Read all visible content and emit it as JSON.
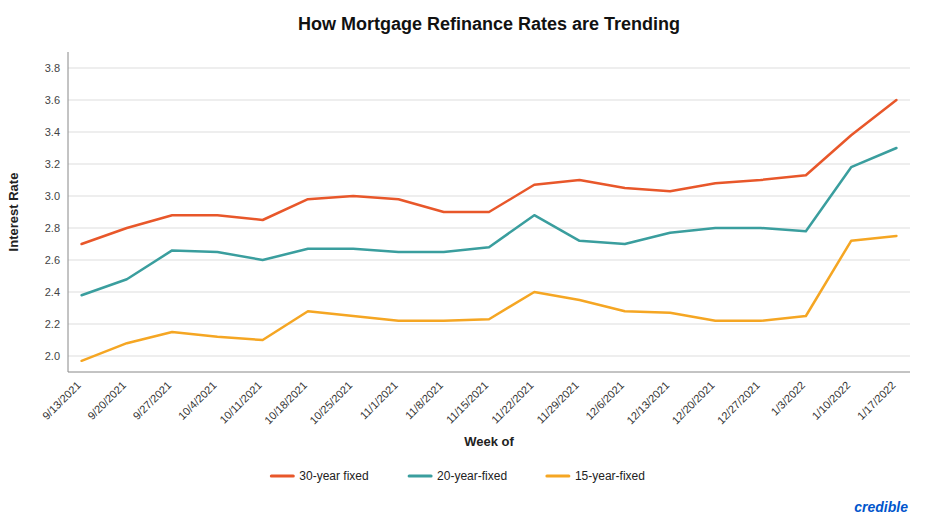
{
  "chart_data": {
    "type": "line",
    "title": "How Mortgage Refinance Rates are Trending",
    "x_label": "Week of",
    "y_label": "Interest Rate",
    "categories": [
      "9/13/2021",
      "9/20/2021",
      "9/27/2021",
      "10/4/2021",
      "10/11/2021",
      "10/18/2021",
      "10/25/2021",
      "11/1/2021",
      "11/8/2021",
      "11/15/2021",
      "11/22/2021",
      "11/29/2021",
      "12/6/2021",
      "12/13/2021",
      "12/20/2021",
      "12/27/2021",
      "1/3/2022",
      "1/10/2022",
      "1/17/2022"
    ],
    "series": [
      {
        "name": "30-year fixed",
        "color": "#E8572A",
        "values": [
          2.7,
          2.8,
          2.88,
          2.88,
          2.85,
          2.98,
          3.0,
          2.98,
          2.9,
          2.9,
          3.07,
          3.1,
          3.05,
          3.03,
          3.08,
          3.1,
          3.13,
          3.38,
          3.6
        ]
      },
      {
        "name": "20-year-fixed",
        "color": "#3A9E9E",
        "values": [
          2.38,
          2.48,
          2.66,
          2.65,
          2.6,
          2.67,
          2.67,
          2.65,
          2.65,
          2.68,
          2.88,
          2.72,
          2.7,
          2.77,
          2.8,
          2.8,
          2.78,
          3.18,
          3.3
        ]
      },
      {
        "name": "15-year-fixed",
        "color": "#F5A623",
        "values": [
          1.97,
          2.08,
          2.15,
          2.12,
          2.1,
          2.28,
          2.25,
          2.22,
          2.22,
          2.23,
          2.4,
          2.35,
          2.28,
          2.27,
          2.22,
          2.22,
          2.25,
          2.72,
          2.75
        ]
      }
    ],
    "ylim": [
      1.9,
      3.9
    ],
    "yticks": [
      {
        "value": 2,
        "label": "2.0"
      },
      2.2,
      2.4,
      2.6,
      2.8,
      {
        "value": 3,
        "label": "3.0"
      },
      3.2,
      3.4,
      3.6,
      3.8
    ],
    "grid": true,
    "legend": "bottom",
    "annotations": [
      "credible"
    ]
  }
}
